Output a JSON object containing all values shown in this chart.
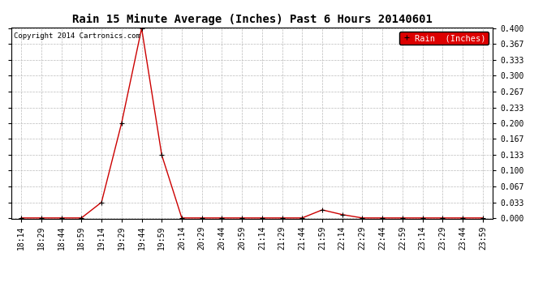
{
  "title": "Rain 15 Minute Average (Inches) Past 6 Hours 20140601",
  "copyright_text": "Copyright 2014 Cartronics.com",
  "legend_label": "Rain  (Inches)",
  "x_labels": [
    "18:14",
    "18:29",
    "18:44",
    "18:59",
    "19:14",
    "19:29",
    "19:44",
    "19:59",
    "20:14",
    "20:29",
    "20:44",
    "20:59",
    "21:14",
    "21:29",
    "21:44",
    "21:59",
    "22:14",
    "22:29",
    "22:44",
    "22:59",
    "23:14",
    "23:29",
    "23:44",
    "23:59"
  ],
  "y_values": [
    0.0,
    0.0,
    0.0,
    0.0,
    0.033,
    0.2,
    0.4,
    0.133,
    0.0,
    0.0,
    0.0,
    0.0,
    0.0,
    0.0,
    0.0,
    0.017,
    0.007,
    0.0,
    0.0,
    0.0,
    0.0,
    0.0,
    0.0,
    0.0
  ],
  "y_ticks": [
    0.0,
    0.033,
    0.067,
    0.1,
    0.133,
    0.167,
    0.2,
    0.233,
    0.267,
    0.3,
    0.333,
    0.367,
    0.4
  ],
  "y_tick_labels": [
    "0.000",
    "0.033",
    "0.067",
    "0.100",
    "0.133",
    "0.167",
    "0.200",
    "0.233",
    "0.267",
    "0.300",
    "0.333",
    "0.367",
    "0.400"
  ],
  "ylim": [
    0.0,
    0.4
  ],
  "line_color": "#cc0000",
  "marker": "+",
  "marker_color": "#000000",
  "bg_color": "#ffffff",
  "grid_color": "#bbbbbb",
  "legend_bg": "#dd0000",
  "legend_fg": "#ffffff",
  "title_fontsize": 10,
  "copyright_fontsize": 6.5,
  "tick_fontsize": 7,
  "legend_fontsize": 7.5
}
